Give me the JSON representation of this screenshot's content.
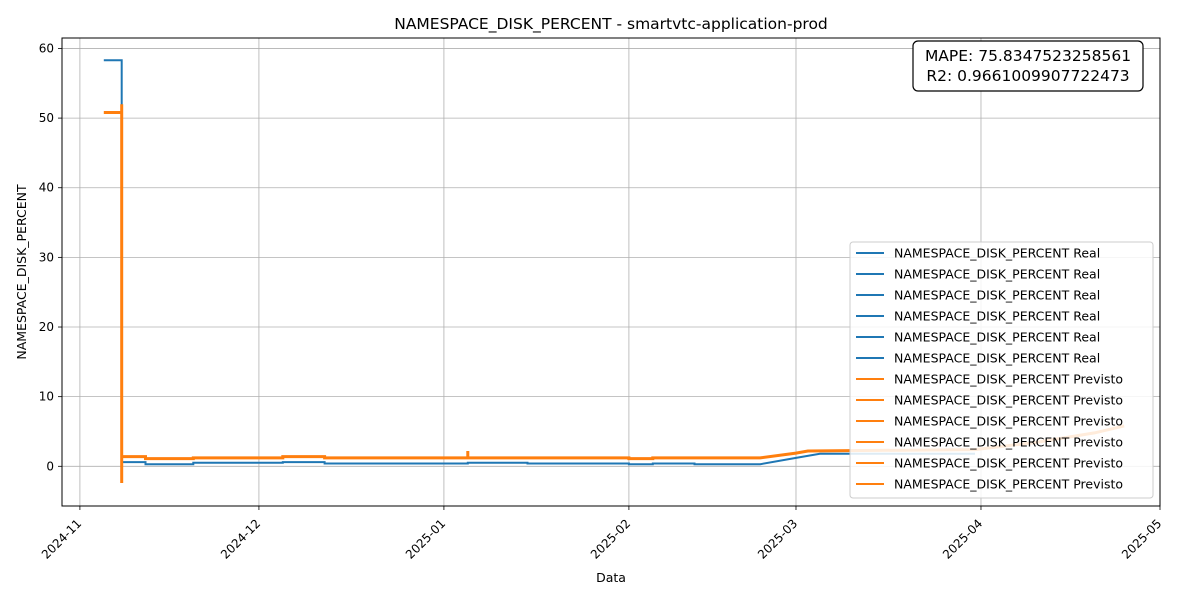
{
  "chart_data": {
    "type": "line",
    "title": "NAMESPACE_DISK_PERCENT - smartvtc-application-prod",
    "xlabel": "Data",
    "ylabel": "NAMESPACE_DISK_PERCENT",
    "xlim": [
      "2024-10-29",
      "2025-05-01"
    ],
    "ylim": [
      -5.7,
      61.5
    ],
    "x_ticks": [
      "2024-11",
      "2024-12",
      "2025-01",
      "2025-02",
      "2025-03",
      "2025-04",
      "2025-05"
    ],
    "x_tick_dates": [
      "2024-11-01",
      "2024-12-01",
      "2025-01-01",
      "2025-02-01",
      "2025-03-01",
      "2025-04-01",
      "2025-05-01"
    ],
    "y_ticks": [
      0,
      10,
      20,
      30,
      40,
      50,
      60
    ],
    "grid": true,
    "colors": {
      "real": "#1f77b4",
      "previsto": "#ff7f0e"
    },
    "annotation": {
      "mape_text": "MAPE: 75.8347523258561",
      "r2_text": "R2: 0.9661009907722473"
    },
    "legend": {
      "position": "lower-right",
      "entries": [
        {
          "label": "NAMESPACE_DISK_PERCENT Real",
          "color": "#1f77b4"
        },
        {
          "label": "NAMESPACE_DISK_PERCENT Real",
          "color": "#1f77b4"
        },
        {
          "label": "NAMESPACE_DISK_PERCENT Real",
          "color": "#1f77b4"
        },
        {
          "label": "NAMESPACE_DISK_PERCENT Real",
          "color": "#1f77b4"
        },
        {
          "label": "NAMESPACE_DISK_PERCENT Real",
          "color": "#1f77b4"
        },
        {
          "label": "NAMESPACE_DISK_PERCENT Real",
          "color": "#1f77b4"
        },
        {
          "label": "NAMESPACE_DISK_PERCENT Previsto",
          "color": "#ff7f0e"
        },
        {
          "label": "NAMESPACE_DISK_PERCENT Previsto",
          "color": "#ff7f0e"
        },
        {
          "label": "NAMESPACE_DISK_PERCENT Previsto",
          "color": "#ff7f0e"
        },
        {
          "label": "NAMESPACE_DISK_PERCENT Previsto",
          "color": "#ff7f0e"
        },
        {
          "label": "NAMESPACE_DISK_PERCENT Previsto",
          "color": "#ff7f0e"
        },
        {
          "label": "NAMESPACE_DISK_PERCENT Previsto",
          "color": "#ff7f0e"
        }
      ]
    },
    "series": [
      {
        "name": "NAMESPACE_DISK_PERCENT Real",
        "color": "#1f77b4",
        "points": [
          [
            "2024-11-05",
            58.3
          ],
          [
            "2024-11-08",
            58.3
          ],
          [
            "2024-11-08",
            0.6
          ],
          [
            "2024-11-12",
            0.6
          ],
          [
            "2024-11-12",
            0.3
          ],
          [
            "2024-11-20",
            0.3
          ],
          [
            "2024-11-20",
            0.5
          ],
          [
            "2024-12-05",
            0.5
          ],
          [
            "2024-12-05",
            0.6
          ],
          [
            "2024-12-12",
            0.6
          ],
          [
            "2024-12-12",
            0.4
          ],
          [
            "2025-01-05",
            0.4
          ],
          [
            "2025-01-05",
            0.5
          ],
          [
            "2025-01-15",
            0.5
          ],
          [
            "2025-01-15",
            0.4
          ],
          [
            "2025-02-01",
            0.4
          ],
          [
            "2025-02-01",
            0.3
          ],
          [
            "2025-02-05",
            0.3
          ],
          [
            "2025-02-05",
            0.4
          ],
          [
            "2025-02-12",
            0.4
          ],
          [
            "2025-02-12",
            0.3
          ],
          [
            "2025-02-23",
            0.3
          ],
          [
            "2025-03-01",
            1.2
          ],
          [
            "2025-03-05",
            1.8
          ],
          [
            "2025-03-31",
            1.8
          ]
        ]
      },
      {
        "name": "NAMESPACE_DISK_PERCENT Previsto",
        "color": "#ff7f0e",
        "points": [
          [
            "2024-11-05",
            50.8
          ],
          [
            "2024-11-08",
            50.8
          ],
          [
            "2024-11-08",
            52.0
          ],
          [
            "2024-11-08",
            -2.4
          ],
          [
            "2024-11-08",
            1.4
          ],
          [
            "2024-11-12",
            1.4
          ],
          [
            "2024-11-12",
            1.1
          ],
          [
            "2024-11-20",
            1.1
          ],
          [
            "2024-11-20",
            1.2
          ],
          [
            "2024-12-05",
            1.2
          ],
          [
            "2024-12-05",
            1.4
          ],
          [
            "2024-12-12",
            1.4
          ],
          [
            "2024-12-12",
            1.2
          ],
          [
            "2025-01-05",
            1.2
          ],
          [
            "2025-01-05",
            2.2
          ],
          [
            "2025-01-05",
            1.2
          ],
          [
            "2025-01-15",
            1.2
          ],
          [
            "2025-01-15",
            1.2
          ],
          [
            "2025-02-01",
            1.2
          ],
          [
            "2025-02-01",
            1.1
          ],
          [
            "2025-02-05",
            1.1
          ],
          [
            "2025-02-05",
            1.2
          ],
          [
            "2025-02-23",
            1.2
          ],
          [
            "2025-03-01",
            1.9
          ],
          [
            "2025-03-03",
            2.2
          ],
          [
            "2025-03-31",
            2.4
          ],
          [
            "2025-04-10",
            3.4
          ],
          [
            "2025-04-20",
            4.8
          ],
          [
            "2025-04-25",
            5.8
          ]
        ]
      }
    ]
  }
}
